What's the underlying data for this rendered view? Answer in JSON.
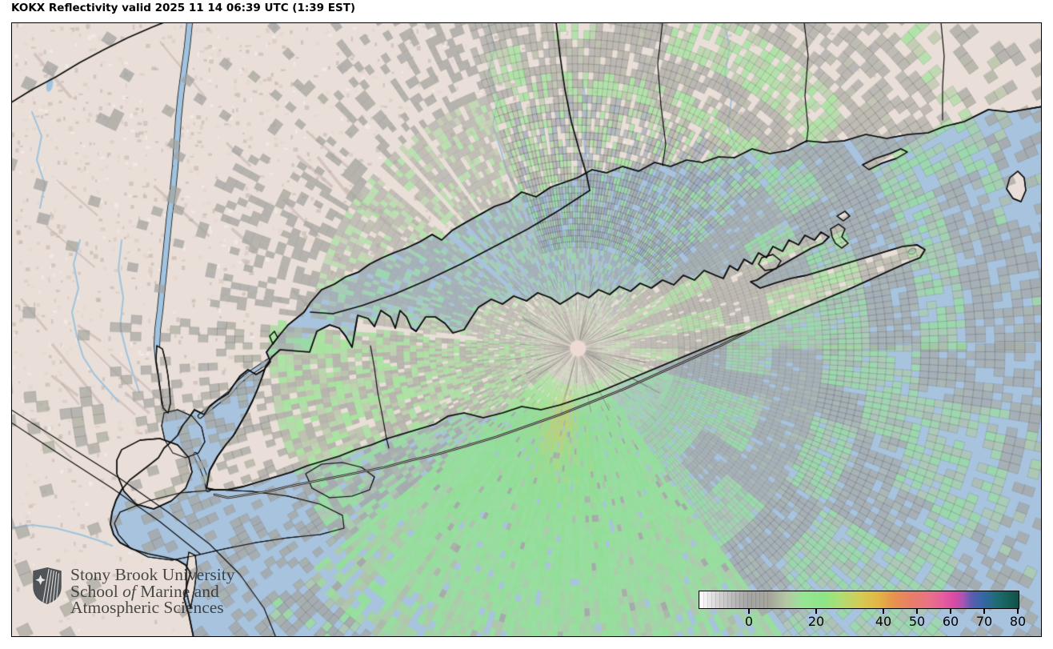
{
  "title": "KOKX Reflectivity valid 2025 11 14 06:39 UTC (1:39 EST)",
  "logo": {
    "line1": "Stony Brook University",
    "line2_pre": "School ",
    "line2_italic": "of",
    "line2_post": " Marine and",
    "line3": "Atmospheric Sciences"
  },
  "colorbar": {
    "min": -15,
    "max": 80,
    "tick_values": [
      0,
      20,
      40,
      50,
      60,
      70,
      80
    ],
    "tick_labels": [
      "0",
      "20",
      "40",
      "50",
      "60",
      "70",
      "80"
    ],
    "stops": [
      {
        "v": -15,
        "color": "#ffffff"
      },
      {
        "v": -10,
        "color": "#d8d8d8"
      },
      {
        "v": -4,
        "color": "#b4b4b4"
      },
      {
        "v": 0,
        "color": "#a3a3a3"
      },
      {
        "v": 6,
        "color": "#a6a69c"
      },
      {
        "v": 11,
        "color": "#b3c8a4"
      },
      {
        "v": 16,
        "color": "#96e594"
      },
      {
        "v": 22,
        "color": "#8de487"
      },
      {
        "v": 27,
        "color": "#aede74"
      },
      {
        "v": 33,
        "color": "#d4cb55"
      },
      {
        "v": 38,
        "color": "#e2b744"
      },
      {
        "v": 43,
        "color": "#e6924f"
      },
      {
        "v": 48,
        "color": "#e97e68"
      },
      {
        "v": 53,
        "color": "#ea7383"
      },
      {
        "v": 57,
        "color": "#e85f9d"
      },
      {
        "v": 61,
        "color": "#d84aa4"
      },
      {
        "v": 63.5,
        "color": "#a855b4"
      },
      {
        "v": 66,
        "color": "#5b5cb0"
      },
      {
        "v": 69,
        "color": "#3766a8"
      },
      {
        "v": 71.5,
        "color": "#2a6a8e"
      },
      {
        "v": 74,
        "color": "#1e6a6c"
      },
      {
        "v": 78,
        "color": "#155a52"
      },
      {
        "v": 80,
        "color": "#10514a"
      }
    ]
  },
  "map_colors": {
    "ocean": "#a8c3dd",
    "land": "#e9dfd8",
    "boundary": "#111111",
    "river": "#9fc3e0",
    "ocean_echo_gray": "#8f9dab",
    "radar_dot": "#ecdad3"
  }
}
